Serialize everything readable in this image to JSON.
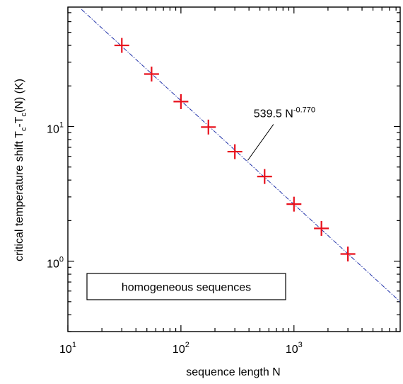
{
  "chart_data": {
    "type": "scatter",
    "x_scale": "log",
    "y_scale": "log",
    "xlabel": "sequence length N",
    "ylabel": {
      "prefix": "critical temperature shift T",
      "sub1": "c",
      "middle": "-T",
      "sub2": "c",
      "suffix": "(N)  (K)"
    },
    "xlim": [
      10,
      8700
    ],
    "ylim": [
      0.3,
      77
    ],
    "x_ticks": [
      {
        "value": 10,
        "base": "10",
        "exp": "1"
      },
      {
        "value": 100,
        "base": "10",
        "exp": "2"
      },
      {
        "value": 1000,
        "base": "10",
        "exp": "3"
      }
    ],
    "y_ticks": [
      {
        "value": 1,
        "base": "10",
        "exp": "0"
      },
      {
        "value": 10,
        "base": "10",
        "exp": "1"
      }
    ],
    "series": [
      {
        "marker": "plus",
        "color": "#e8101c",
        "x": [
          30,
          55,
          100,
          175,
          300,
          550,
          1000,
          1750,
          3000
        ],
        "y": [
          40.0,
          24.5,
          15.3,
          9.9,
          6.5,
          4.25,
          2.65,
          1.75,
          1.13
        ]
      }
    ],
    "fit": {
      "coefficient": 539.5,
      "exponent": -0.77,
      "label_base": "539.5 N",
      "label_exp": "-0.770",
      "color": "#2233aa",
      "style": "dash-dot",
      "x_range": [
        13.2,
        8700
      ]
    },
    "legend": {
      "text": "homogeneous sequences",
      "placement": "bottom-left"
    },
    "grid": false
  }
}
